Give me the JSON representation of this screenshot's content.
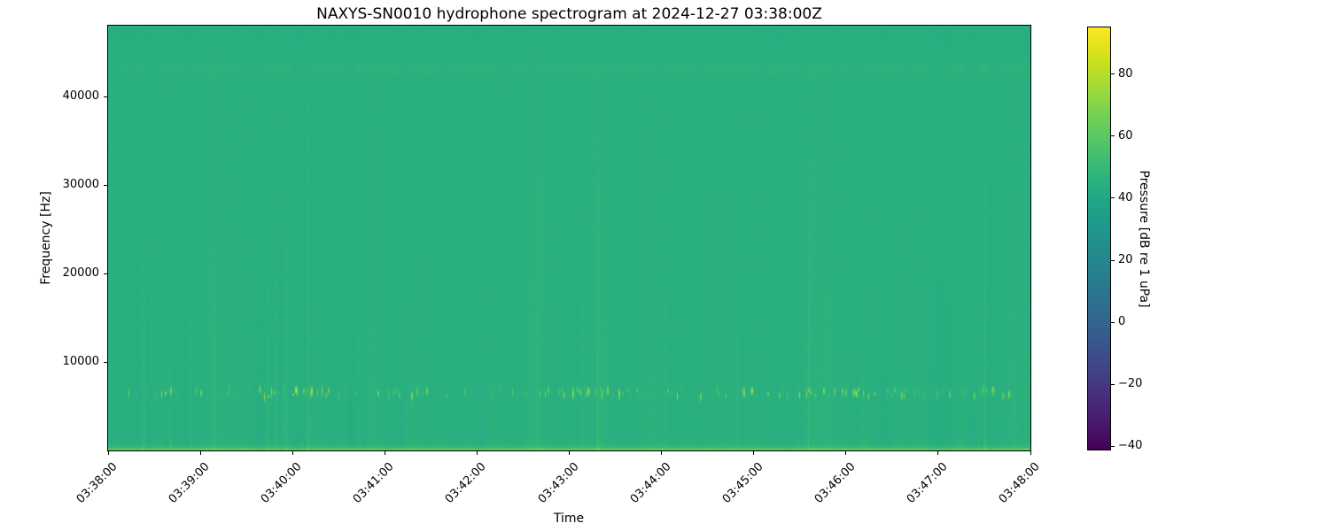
{
  "title": "NAXYS-SN0010 hydrophone spectrogram at 2024-12-27 03:38:00Z",
  "axes": {
    "xlabel": "Time",
    "ylabel": "Frequency [Hz]",
    "x_ticks": [
      "03:38:00",
      "03:39:00",
      "03:40:00",
      "03:41:00",
      "03:42:00",
      "03:43:00",
      "03:44:00",
      "03:45:00",
      "03:46:00",
      "03:47:00",
      "03:48:00"
    ],
    "y_ticks": [
      {
        "value": 10000,
        "label": "10000"
      },
      {
        "value": 20000,
        "label": "20000"
      },
      {
        "value": 30000,
        "label": "30000"
      },
      {
        "value": 40000,
        "label": "40000"
      }
    ]
  },
  "colorbar": {
    "label": "Pressure [dB re 1 uPa]",
    "ticks": [
      {
        "value": 80,
        "label": "80"
      },
      {
        "value": 60,
        "label": "60"
      },
      {
        "value": 40,
        "label": "40"
      },
      {
        "value": 20,
        "label": "20"
      },
      {
        "value": 0,
        "label": "0"
      },
      {
        "value": -20,
        "label": "−20"
      },
      {
        "value": -40,
        "label": "−40"
      }
    ]
  },
  "chart_data": {
    "type": "heatmap",
    "subtype": "spectrogram",
    "title": "NAXYS-SN0010 hydrophone spectrogram at 2024-12-27 03:38:00Z",
    "xlabel": "Time",
    "ylabel": "Frequency [Hz]",
    "x_range": [
      "03:38:00",
      "03:48:00"
    ],
    "x_span_seconds": 600,
    "x_tick_interval_seconds": 60,
    "y_range_hz": [
      0,
      48000
    ],
    "colormap": "viridis",
    "vmin_db": -41,
    "vmax_db": 95,
    "background_level_db": 45,
    "grid": false,
    "legend": "colorbar-right",
    "features": [
      {
        "name": "broadband-vertical-striations",
        "freq_hz": [
          0,
          48000
        ],
        "peak_offset_db": 5,
        "busy_time_fractions": [
          [
            0.05,
            0.08
          ],
          [
            0.16,
            0.24
          ],
          [
            0.3,
            0.33
          ],
          [
            0.46,
            0.56
          ],
          [
            0.6,
            0.63
          ],
          [
            0.66,
            0.7
          ],
          [
            0.74,
            0.87
          ],
          [
            0.93,
            0.99
          ]
        ],
        "description": "narrow time-varying vertical streaks, strongest below 20 kHz"
      },
      {
        "name": "speckled-tonal-band",
        "freq_hz": [
          5800,
          7300
        ],
        "level_db": [
          50,
          80
        ],
        "description": "intermittent bright dashes near 6.5 kHz"
      },
      {
        "name": "low-frequency-bright-band",
        "freq_hz": [
          0,
          1200
        ],
        "level_db": [
          52,
          68
        ],
        "description": "continuous brighter band along the bottom edge"
      },
      {
        "name": "faint-high-frequency-band",
        "freq_hz": [
          42400,
          43800
        ],
        "offset_db": 1.5,
        "description": "faint mottled horizontal band near 43 kHz"
      }
    ]
  },
  "style": {
    "background": "#ffffff",
    "text_color": "#000000",
    "spine_color": "#000000",
    "base_field_color": "#2aab7e"
  }
}
